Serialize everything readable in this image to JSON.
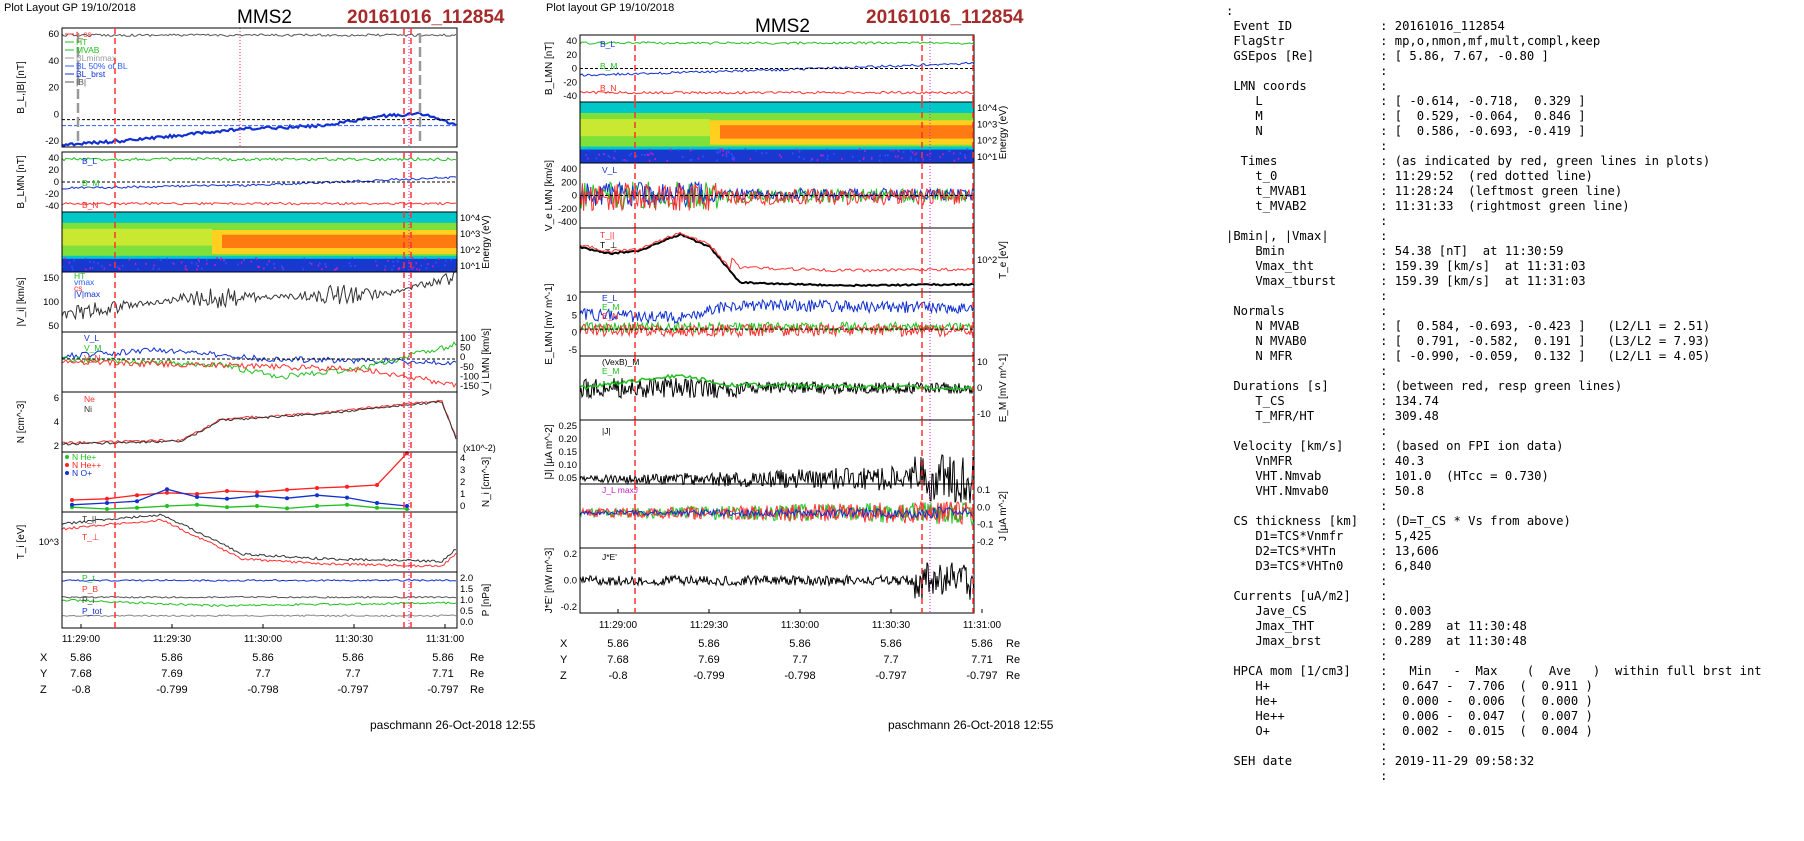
{
  "left": {
    "plot_header": "Plot Layout GP 19/10/2018",
    "spacecraft": "MMS2",
    "event": "20161016_112854",
    "credit": "paschmann 26-Oct-2018 12:55",
    "time_ticks": [
      "11:29:00",
      "11:29:30",
      "11:30:00",
      "11:30:30",
      "11:31:00"
    ],
    "eph": {
      "rows": [
        {
          "label": "X",
          "values": [
            "5.86",
            "5.86",
            "5.86",
            "5.86",
            "5.86"
          ],
          "unit": "Re"
        },
        {
          "label": "Y",
          "values": [
            "7.68",
            "7.69",
            "7.7",
            "7.7",
            "7.71"
          ],
          "unit": "Re"
        },
        {
          "label": "Z",
          "values": [
            "-0.8",
            "-0.799",
            "-0.798",
            "-0.797",
            "-0.797"
          ],
          "unit": "Re"
        }
      ]
    },
    "panels": {
      "bl": {
        "ylabel": "B_L,|B| [nT]",
        "ticks": [
          "60",
          "40",
          "20",
          "0",
          "-20"
        ],
        "legend": [
          "t_cs",
          "HT",
          "MVAB",
          "BLminmax",
          "BL 50% of BL",
          "BL_brst",
          "|B|"
        ]
      },
      "blmn": {
        "ylabel": "B_LMN [nT]",
        "ticks": [
          "40",
          "20",
          "0",
          "-20",
          "-40"
        ],
        "labels": [
          "B_L",
          "B_M",
          "B_N"
        ]
      },
      "spec": {
        "ylabel": "Energy (eV)",
        "ticks": [
          "10^4",
          "10^3",
          "10^2",
          "10^1"
        ]
      },
      "vi": {
        "ylabel": "|V_i| [km/s]",
        "ticks": [
          "150",
          "100",
          "50"
        ],
        "legend": [
          "HT",
          "vmax",
          "cs",
          "|V|max"
        ]
      },
      "vilmn": {
        "ylabel": "V_i LMN [km/s]",
        "ticks": [
          "100",
          "50",
          "0",
          "-50",
          "-100",
          "-150"
        ],
        "labels": [
          "V_L",
          "V_M",
          "V_N"
        ]
      },
      "n": {
        "ylabel": "N [cm^-3]",
        "ticks": [
          "6",
          "4",
          "2"
        ],
        "labels": [
          "Ne",
          "Ni"
        ]
      },
      "hpca": {
        "ylabel": "N_i [cm^-3]",
        "ticks": [
          "4",
          "3",
          "2",
          "1",
          "0"
        ],
        "scale_note": "(x10^-2)",
        "legend": [
          "N He+",
          "N He++",
          "N O+"
        ]
      },
      "ti": {
        "ylabel": "T_i [eV]",
        "ticks": [
          "10^3"
        ],
        "labels": [
          "T_||",
          "T_⊥"
        ]
      },
      "p": {
        "ylabel": "P [nPa]",
        "ticks": [
          "2.0",
          "1.5",
          "1.0",
          "0.5",
          "0.0"
        ],
        "labels": [
          "P_t",
          "P_B",
          "P_i",
          "P_tot"
        ]
      }
    }
  },
  "right": {
    "plot_header": "Plot layout GP 19/10/2018",
    "spacecraft": "MMS2",
    "event": "20161016_112854",
    "credit": "paschmann 26-Oct-2018 12:55",
    "time_ticks": [
      "11:29:00",
      "11:29:30",
      "11:30:00",
      "11:30:30",
      "11:31:00"
    ],
    "eph": {
      "rows": [
        {
          "label": "X",
          "values": [
            "5.86",
            "5.86",
            "5.86",
            "5.86",
            "5.86"
          ],
          "unit": "Re"
        },
        {
          "label": "Y",
          "values": [
            "7.68",
            "7.69",
            "7.7",
            "7.7",
            "7.71"
          ],
          "unit": "Re"
        },
        {
          "label": "Z",
          "values": [
            "-0.8",
            "-0.799",
            "-0.798",
            "-0.797",
            "-0.797"
          ],
          "unit": "Re"
        }
      ]
    },
    "panels": {
      "blmn": {
        "ylabel": "B_LMN [nT]",
        "ticks": [
          "40",
          "20",
          "0",
          "-20",
          "-40"
        ],
        "labels": [
          "B_L",
          "B_M",
          "B_N"
        ]
      },
      "spec": {
        "ylabel": "Energy (eV)",
        "ticks": [
          "10^4",
          "10^3",
          "10^2",
          "10^1"
        ]
      },
      "ve": {
        "ylabel": "V_e LMN [km/s]",
        "ticks": [
          "400",
          "200",
          "0",
          "-200",
          "-400"
        ],
        "labels": [
          "V_L"
        ]
      },
      "te": {
        "ylabel": "T_e [eV]",
        "ticks": [
          "10^2"
        ],
        "labels": [
          "T_||",
          "T_⊥"
        ]
      },
      "e": {
        "ylabel": "E_LMN [mV m^-1]",
        "ticks": [
          "10",
          "5",
          "0",
          "-5"
        ],
        "labels": [
          "E_L",
          "E_M",
          "E_N"
        ]
      },
      "em": {
        "ylabel": "E_M [mV m^-1]",
        "ticks": [
          "10",
          "0",
          "-10"
        ],
        "labels": [
          "(VexB)_M",
          "E_M"
        ]
      },
      "j": {
        "ylabel": "|J| [μA m^-2]",
        "ticks": [
          "0.25",
          "0.20",
          "0.15",
          "0.10",
          "0.05"
        ],
        "labels": [
          "|J|"
        ]
      },
      "jlmn": {
        "ylabel": "J [μA m^-2]",
        "ticks": [
          "0.1",
          "0.0",
          "-0.1",
          "-0.2"
        ],
        "labels": [
          "J_L maxJ"
        ]
      },
      "je": {
        "ylabel": "J*E' [nW m^-3]",
        "ticks": [
          "0.2",
          "0.0",
          "-0.2"
        ],
        "labels": [
          "J*E'"
        ]
      }
    }
  },
  "info": {
    "lines": [
      ":",
      " Event ID            : 20161016_112854",
      " FlagStr             : mp,o,nmon,mf,mult,compl,keep",
      " GSEpos [Re]         : [ 5.86, 7.67, -0.80 ]",
      "                     :",
      " LMN coords          :",
      "    L                : [ -0.614, -0.718,  0.329 ]",
      "    M                : [  0.529, -0.064,  0.846 ]",
      "    N                : [  0.586, -0.693, -0.419 ]",
      "                     :",
      "  Times              : (as indicated by red, green lines in plots)",
      "    t_0              : 11:29:52  (red dotted line)",
      "    t_MVAB1          : 11:28:24  (leftmost green line)",
      "    t_MVAB2          : 11:31:33  (rightmost green line)",
      "                     :",
      "|Bmin|, |Vmax|       :",
      "    Bmin             : 54.38 [nT]  at 11:30:59",
      "    Vmax_tht         : 159.39 [km/s]  at 11:31:03",
      "    Vmax_tburst      : 159.39 [km/s]  at 11:31:03",
      "                     :",
      " Normals             :",
      "    N MVAB           : [  0.584, -0.693, -0.423 ]   (L2/L1 = 2.51)",
      "    N MVAB0          : [  0.791, -0.582,  0.191 ]   (L3/L2 = 7.93)",
      "    N MFR            : [ -0.990, -0.059,  0.132 ]   (L2/L1 = 4.05)",
      "                     :",
      " Durations [s]       : (between red, resp green lines)",
      "    T_CS             : 134.74",
      "    T_MFR/HT         : 309.48",
      "                     :",
      " Velocity [km/s]     : (based on FPI ion data)",
      "    VnMFR            : 40.3",
      "    VHT.Nmvab        : 101.0  (HTcc = 0.730)",
      "    VHT.Nmvab0       : 50.8",
      "                     :",
      " CS thickness [km]   : (D=T_CS * Vs from above)",
      "    D1=TCS*Vnmfr     : 5,425",
      "    D2=TCS*VHTn      : 13,606",
      "    D3=TCS*VHTn0     : 6,840",
      "                     :",
      " Currents [uA/m2]    :",
      "    Jave_CS          : 0.003",
      "    Jmax_THT         : 0.289  at 11:30:48",
      "    Jmax_brst        : 0.289  at 11:30:48",
      "                     :",
      " HPCA mom [1/cm3]    :   Min   -  Max    (  Ave   )  within full brst int",
      "    H+               :  0.647 -  7.706  (  0.911 )",
      "    He+              :  0.000 -  0.006  (  0.000 )",
      "    He++             :  0.006 -  0.047  (  0.007 )",
      "    O+               :  0.002 -  0.015  (  0.004 )",
      "                     :",
      " SEH date            : 2019-11-29 09:58:32",
      "                     :"
    ]
  },
  "chart_data": [
    {
      "type": "line",
      "title": "MMS2 20161016_112854",
      "xlabel": "",
      "x_ticks": [
        "11:29:00",
        "11:29:30",
        "11:30:00",
        "11:30:30",
        "11:31:00"
      ],
      "panels": [
        "B_L,|B| [nT]",
        "B_LMN [nT]",
        "Energy (eV)",
        "|V_i| [km/s]",
        "V_i LMN [km/s]",
        "N [cm^-3]",
        "N_i [cm^-3]",
        "T_i [eV]",
        "P [nPa]"
      ],
      "series": [
        {
          "name": "|B|",
          "panel": "B_L,|B| [nT]",
          "x_s": [
            0,
            30,
            60,
            90,
            120,
            150
          ],
          "values": [
            57,
            58,
            59,
            58,
            56,
            55
          ]
        },
        {
          "name": "BL_brst",
          "panel": "B_L,|B| [nT]",
          "x_s": [
            0,
            30,
            60,
            90,
            120,
            145,
            160
          ],
          "values": [
            -18,
            -16,
            -12,
            -10,
            -8,
            3,
            -2
          ]
        },
        {
          "name": "|V_i|",
          "panel": "|V_i| [km/s]",
          "x_s": [
            0,
            30,
            60,
            90,
            120,
            150
          ],
          "values": [
            50,
            80,
            95,
            90,
            110,
            150
          ]
        },
        {
          "name": "Ne",
          "panel": "N [cm^-3]",
          "x_s": [
            0,
            30,
            60,
            90,
            120,
            150
          ],
          "values": [
            1.2,
            1.3,
            1.5,
            3.8,
            4.5,
            6
          ]
        },
        {
          "name": "He++",
          "panel": "N_i [cm^-3]",
          "x_s": [
            5,
            25,
            45,
            65,
            85,
            105,
            125,
            140
          ],
          "values": [
            1.0,
            1.3,
            1.7,
            1.8,
            2.0,
            2.2,
            2.3,
            4.0
          ]
        }
      ]
    },
    {
      "type": "line",
      "title": "MMS2 20161016_112854",
      "xlabel": "",
      "x_ticks": [
        "11:29:00",
        "11:29:30",
        "11:30:00",
        "11:30:30",
        "11:31:00"
      ],
      "panels": [
        "B_LMN [nT]",
        "Energy (eV)",
        "V_e LMN [km/s]",
        "T_e [eV]",
        "E_LMN [mV m^-1]",
        "E_M [mV m^-1]",
        "|J| [μA m^-2]",
        "J [μA m^-2]",
        "J*E' [nW m^-3]"
      ],
      "series": [
        {
          "name": "B_L",
          "panel": "B_LMN [nT]",
          "x_s": [
            0,
            50,
            100,
            150
          ],
          "values": [
            42,
            44,
            45,
            43
          ]
        },
        {
          "name": "T_||",
          "panel": "T_e [eV]",
          "x_s": [
            0,
            30,
            45,
            60,
            100,
            150
          ],
          "values": [
            300,
            400,
            450,
            200,
            150,
            160
          ]
        },
        {
          "name": "|J|",
          "panel": "|J| [μA m^-2]",
          "x_s": [
            0,
            50,
            100,
            140,
            150
          ],
          "values": [
            0.02,
            0.05,
            0.08,
            0.2,
            0.1
          ]
        }
      ]
    }
  ]
}
